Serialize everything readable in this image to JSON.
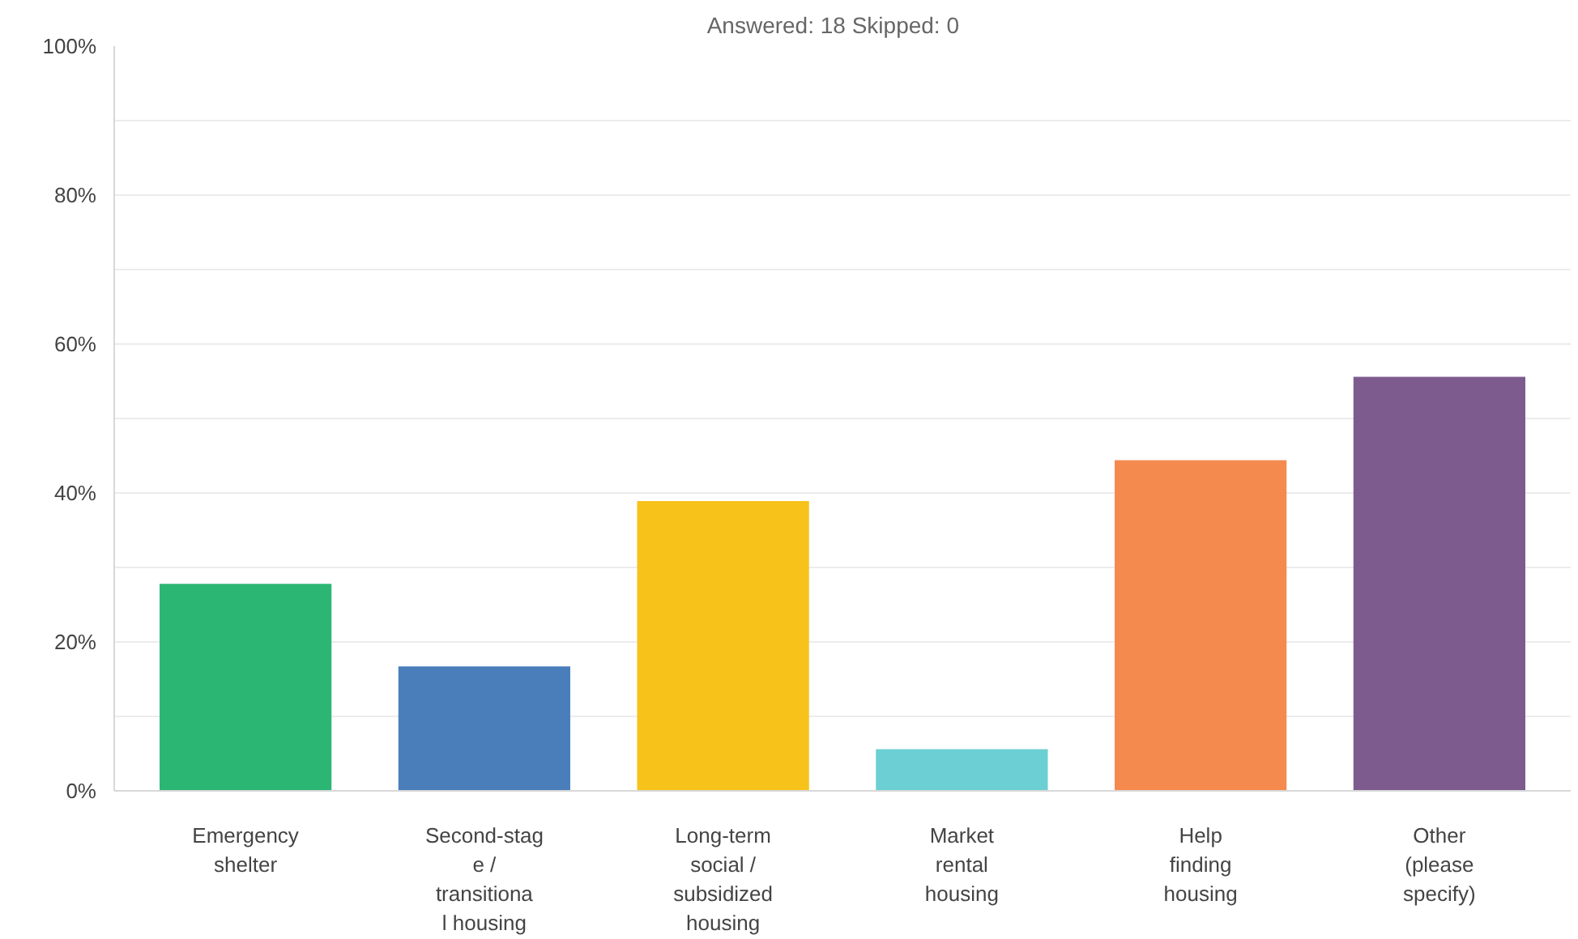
{
  "chart_data": {
    "type": "bar",
    "title": "Answered: 18    Skipped: 0",
    "categories": [
      "Emergency shelter",
      "Second-stage / transitional housing",
      "Long-term social / subsidized housing",
      "Market rental housing",
      "Help finding housing",
      "Other (please specify)"
    ],
    "values": [
      27.8,
      16.7,
      38.9,
      5.6,
      44.4,
      55.6
    ],
    "colors": [
      "#2bb673",
      "#4a7ebb",
      "#f7c21a",
      "#6ccfd3",
      "#f58a4f",
      "#7d5b8f"
    ],
    "ylim": [
      0,
      100
    ],
    "yticks": [
      {
        "value": 0,
        "label": "0%"
      },
      {
        "value": 10,
        "label": null
      },
      {
        "value": 20,
        "label": "20%"
      },
      {
        "value": 30,
        "label": null
      },
      {
        "value": 40,
        "label": "40%"
      },
      {
        "value": 50,
        "label": null
      },
      {
        "value": 60,
        "label": "60%"
      },
      {
        "value": 70,
        "label": null
      },
      {
        "value": 80,
        "label": "80%"
      },
      {
        "value": 90,
        "label": null
      },
      {
        "value": 100,
        "label": "100%"
      }
    ],
    "grid": true
  }
}
